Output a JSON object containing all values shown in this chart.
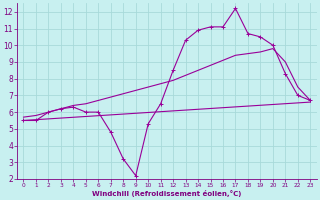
{
  "line1_x": [
    0,
    1,
    2,
    3,
    4,
    5,
    6,
    7,
    8,
    9,
    10,
    11,
    12,
    13,
    14,
    15,
    16,
    17,
    18,
    19,
    20,
    21,
    22,
    23
  ],
  "line1_y": [
    5.5,
    5.5,
    6.0,
    6.2,
    6.3,
    6.0,
    6.0,
    4.8,
    3.2,
    2.2,
    5.3,
    6.5,
    8.5,
    10.3,
    10.9,
    11.1,
    11.1,
    12.2,
    10.7,
    10.5,
    10.0,
    8.3,
    7.0,
    6.7
  ],
  "line2_x": [
    0,
    23
  ],
  "line2_y": [
    5.5,
    6.6
  ],
  "line3_x": [
    0,
    1,
    2,
    3,
    4,
    5,
    6,
    7,
    8,
    9,
    10,
    11,
    12,
    13,
    14,
    15,
    16,
    17,
    18,
    19,
    20,
    21,
    22,
    23
  ],
  "line3_y": [
    5.7,
    5.8,
    6.0,
    6.2,
    6.4,
    6.5,
    6.7,
    6.9,
    7.1,
    7.3,
    7.5,
    7.7,
    7.9,
    8.2,
    8.5,
    8.8,
    9.1,
    9.4,
    9.5,
    9.6,
    9.8,
    9.0,
    7.5,
    6.7
  ],
  "line_color": "#990099",
  "marker": "+",
  "marker_size": 3,
  "marker_lw": 0.7,
  "line_lw": 0.8,
  "background_color": "#c8f0f0",
  "grid_color": "#a8dada",
  "xlabel": "Windchill (Refroidissement éolien,°C)",
  "xlabel_color": "#800080",
  "tick_color": "#800080",
  "spine_color": "#800080",
  "xlim": [
    -0.5,
    23.5
  ],
  "ylim": [
    2,
    12.5
  ],
  "yticks": [
    2,
    3,
    4,
    5,
    6,
    7,
    8,
    9,
    10,
    11,
    12
  ],
  "xticks": [
    0,
    1,
    2,
    3,
    4,
    5,
    6,
    7,
    8,
    9,
    10,
    11,
    12,
    13,
    14,
    15,
    16,
    17,
    18,
    19,
    20,
    21,
    22,
    23
  ],
  "xtick_fontsize": 4.2,
  "ytick_fontsize": 5.5,
  "xlabel_fontsize": 5.0,
  "xlabel_fontweight": "bold"
}
